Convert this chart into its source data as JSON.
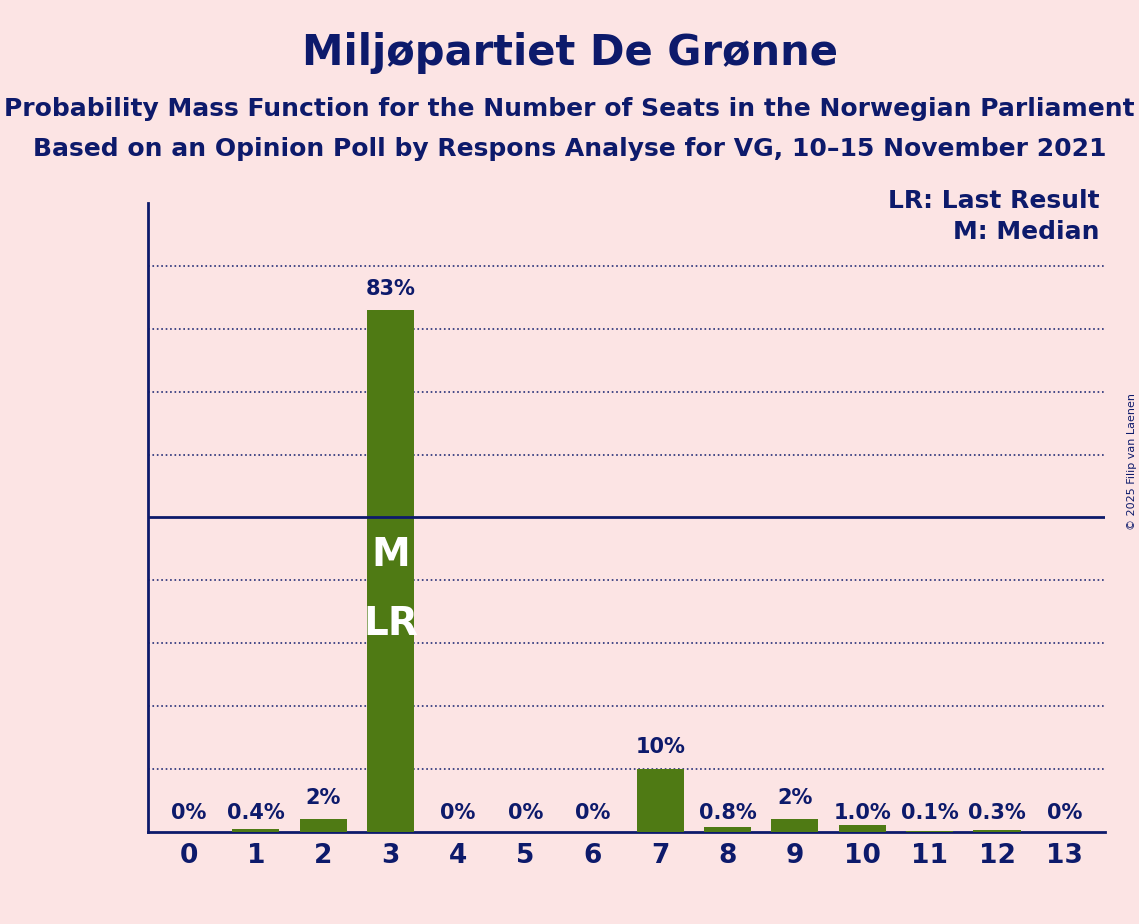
{
  "title": "Miljøpartiet De Grønne",
  "subtitle1": "Probability Mass Function for the Number of Seats in the Norwegian Parliament",
  "subtitle2": "Based on an Opinion Poll by Respons Analyse for VG, 10–15 November 2021",
  "copyright": "© 2025 Filip van Laenen",
  "seats": [
    0,
    1,
    2,
    3,
    4,
    5,
    6,
    7,
    8,
    9,
    10,
    11,
    12,
    13
  ],
  "probabilities": [
    0.0,
    0.004,
    0.02,
    0.83,
    0.0,
    0.0,
    0.0,
    0.1,
    0.008,
    0.02,
    0.01,
    0.001,
    0.003,
    0.0
  ],
  "prob_labels": [
    "0%",
    "0.4%",
    "2%",
    "83%",
    "0%",
    "0%",
    "0%",
    "10%",
    "0.8%",
    "2%",
    "1.0%",
    "0.1%",
    "0.3%",
    "0%"
  ],
  "bar_color": "#4f7a14",
  "background_color": "#fce4e4",
  "text_color": "#0d1a6b",
  "fifty_pct_line_color": "#0d1a6b",
  "grid_color": "#0d1a6b",
  "legend_lr": "LR: Last Result",
  "legend_m": "M: Median",
  "title_fontsize": 30,
  "subtitle_fontsize": 18,
  "label_fontsize": 15,
  "tick_fontsize": 19,
  "ylabel_fontsize": 24,
  "legend_fontsize": 18,
  "ml_fontsize": 28
}
